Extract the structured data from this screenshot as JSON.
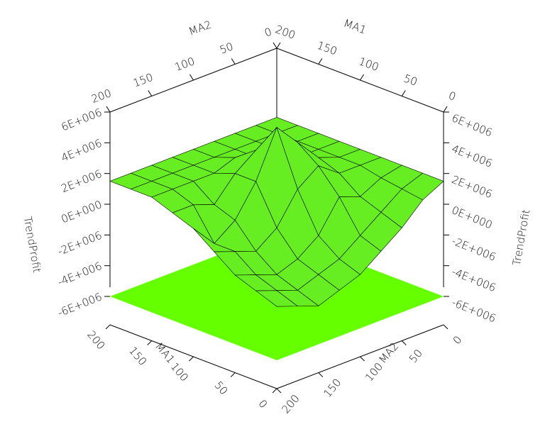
{
  "chart_data": {
    "type": "surface3d",
    "x_label": "MA1",
    "y_label": "MA2",
    "z_label": "TrendProfit",
    "xlim": [
      0,
      200
    ],
    "ylim": [
      0,
      200
    ],
    "zlim": [
      -6000000,
      6000000
    ],
    "xticks": [
      0,
      50,
      100,
      150,
      200
    ],
    "yticks": [
      0,
      50,
      100,
      150,
      200
    ],
    "zticks": [
      {
        "value": -6000000,
        "label": "-6E+006"
      },
      {
        "value": -4000000,
        "label": "-4E+006"
      },
      {
        "value": -2000000,
        "label": "-2E+006"
      },
      {
        "value": 0,
        "label": "0E+000"
      },
      {
        "value": 2000000,
        "label": "2E+006"
      },
      {
        "value": 4000000,
        "label": "4E+006"
      },
      {
        "value": 6000000,
        "label": "6E+006"
      }
    ],
    "surface_color": "#66ee22",
    "floor_color": "#66ff00",
    "x": [
      0,
      25,
      50,
      75,
      100,
      125,
      150,
      175,
      200
    ],
    "y": [
      0,
      25,
      50,
      75,
      100,
      125,
      150,
      175,
      200
    ],
    "z": [
      [
        1500000,
        800000,
        -500000,
        -1500000,
        -2500000,
        -3000000,
        -3500000,
        -3000000,
        -2500000
      ],
      [
        1500000,
        1000000,
        0,
        -1000000,
        -2000000,
        -2500000,
        -3000000,
        -2500000,
        -2000000
      ],
      [
        1500000,
        1200000,
        500000,
        1000000,
        -1000000,
        -2000000,
        -2500000,
        -2000000,
        -1500000
      ],
      [
        1500000,
        1500000,
        1500000,
        2500000,
        1500000,
        -500000,
        -1500000,
        -1000000,
        -500000
      ],
      [
        1500000,
        1500000,
        2000000,
        3500000,
        5000000,
        2000000,
        0,
        -1000000,
        500000
      ],
      [
        1500000,
        1500000,
        1500000,
        2500000,
        3000000,
        2000000,
        500000,
        1000000,
        1000000
      ],
      [
        1500000,
        1500000,
        1500000,
        1500000,
        2000000,
        1500000,
        1500000,
        1500000,
        1500000
      ],
      [
        1500000,
        1500000,
        1500000,
        1500000,
        1500000,
        1500000,
        1500000,
        1500000,
        1500000
      ],
      [
        1500000,
        1500000,
        1500000,
        1500000,
        1500000,
        1500000,
        1500000,
        1500000,
        1500000
      ]
    ]
  }
}
